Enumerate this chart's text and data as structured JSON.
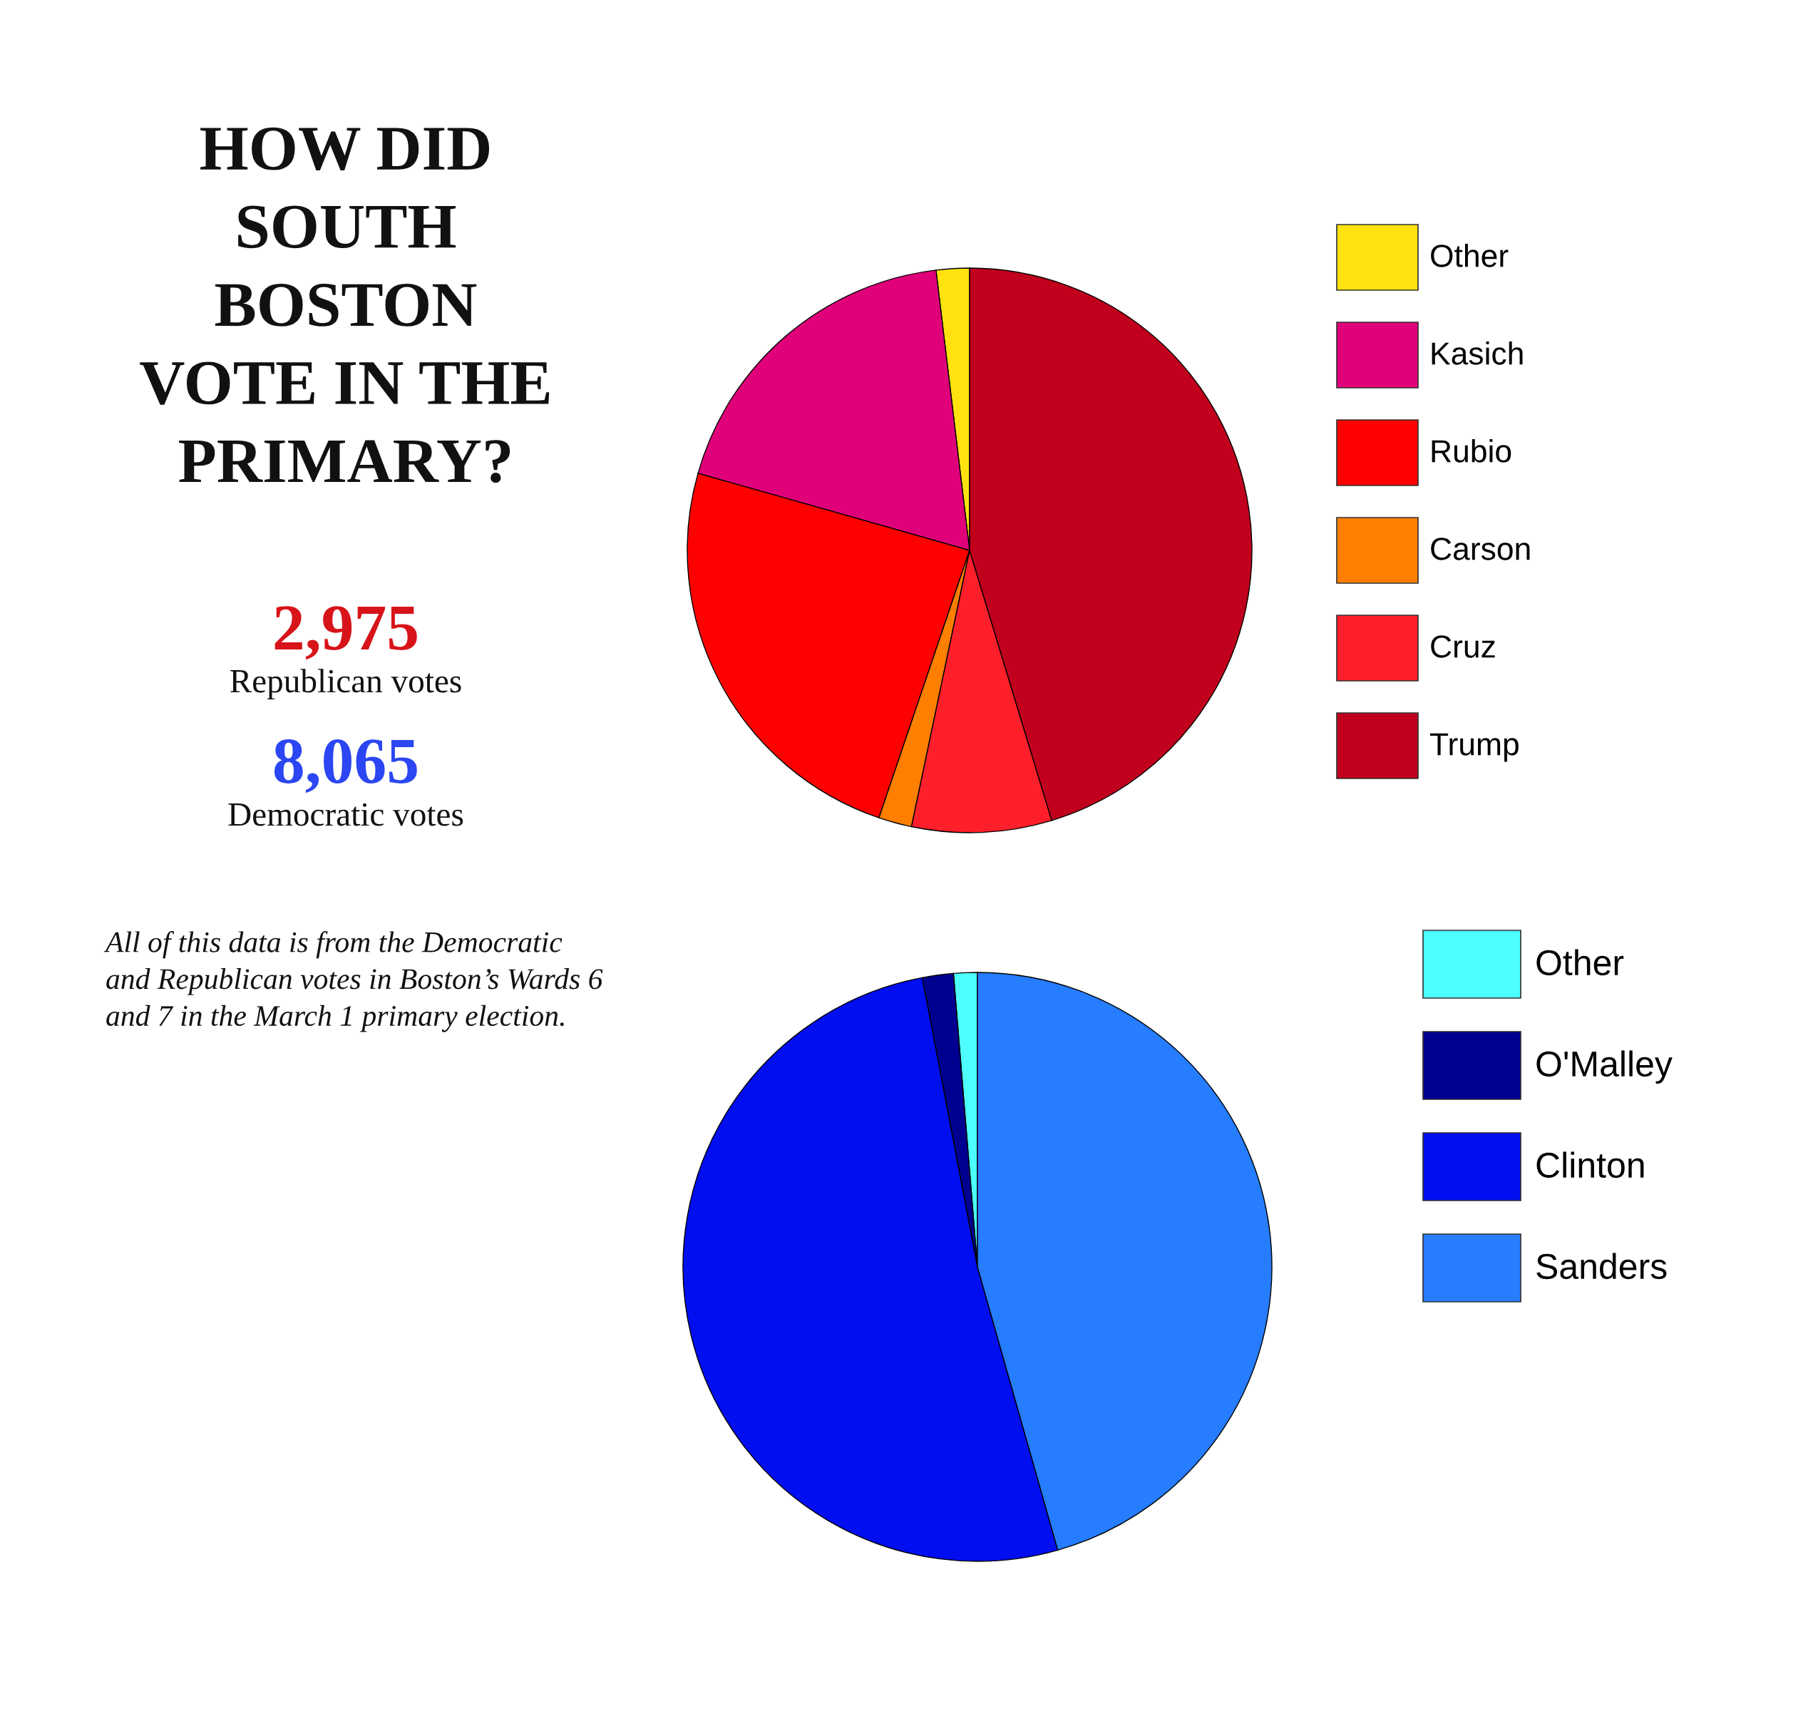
{
  "chart_data": [
    {
      "type": "other",
      "title": "HOW DID SOUTH BOSTON VOTE IN THE PRIMARY?",
      "annotations": [
        "2,975",
        "Republican votes",
        "8,065",
        "Democratic votes",
        "All of this data is from the Democratic and Republican votes in Boston’s Wards 6 and 7 in the March 1 primary election."
      ]
    },
    {
      "type": "pie",
      "categories": [
        "Other",
        "Kasich",
        "Rubio",
        "Carson",
        "Cruz",
        "Trump"
      ],
      "values": [
        1.9,
        18.7,
        24.2,
        1.9,
        8.0,
        45.3
      ],
      "colors": [
        "#ffe20e",
        "#e0007a",
        "#ff0000",
        "#ff7f00",
        "#ff1f2a",
        "#c0001c"
      ],
      "legend": "right"
    },
    {
      "type": "pie",
      "categories": [
        "Other",
        "O'Malley",
        "Clinton",
        "Sanders"
      ],
      "values": [
        1.3,
        1.7,
        51.4,
        45.6
      ],
      "colors": [
        "#4dffff",
        "#000090",
        "#000ef0",
        "#267dff"
      ],
      "legend": "right"
    }
  ]
}
